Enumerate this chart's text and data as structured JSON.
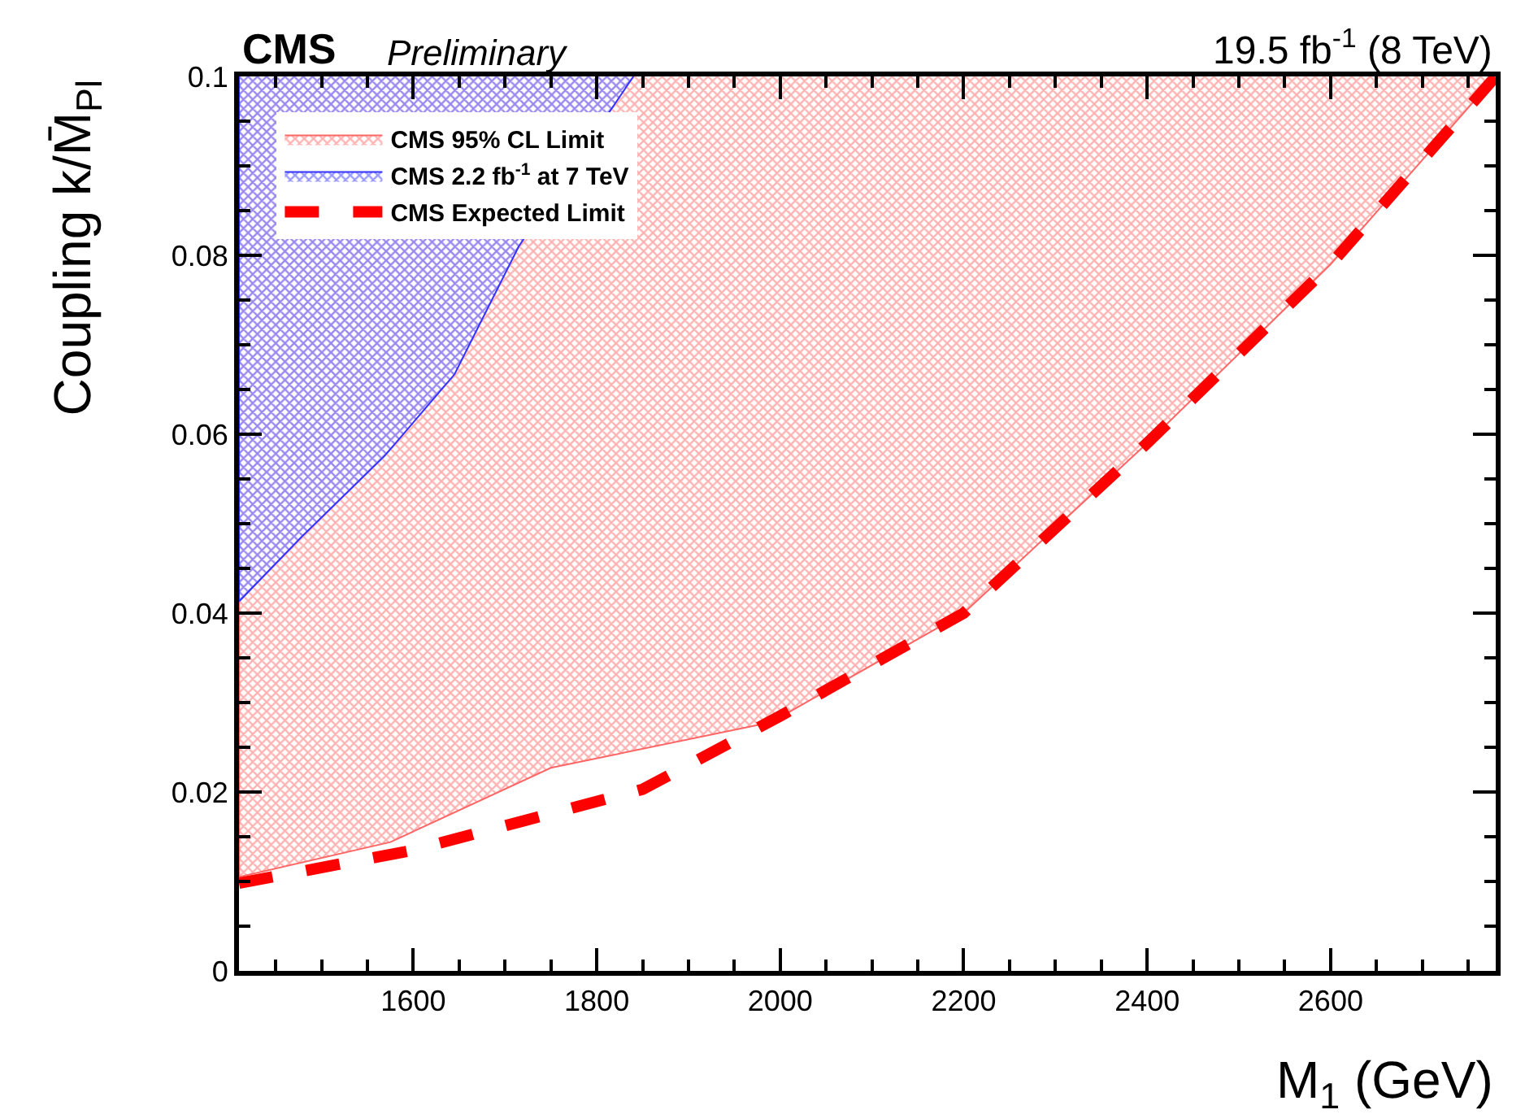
{
  "chart_data": {
    "type": "area",
    "title": "CMS",
    "subtitle": "Preliminary",
    "annotations": [
      "19.5 fb$^{-1}$ (8 TeV)"
    ],
    "xlabel": "M$_{1}$ (GeV)",
    "ylabel": "Coupling k/M̄$_{Pl}$",
    "xlim": [
      1410,
      2780
    ],
    "ylim": [
      0,
      0.1
    ],
    "xticks": [
      1600,
      1800,
      2000,
      2200,
      2400,
      2600
    ],
    "yticks": [
      0,
      0.02,
      0.04,
      0.06,
      0.08,
      0.1
    ],
    "legend": "top left",
    "series": [
      {
        "name": "CMS 95% CL Limit",
        "color": "#ff6666",
        "x": [
          1410,
          1410,
          1575,
          1750,
          1990,
          2200,
          2400,
          2600,
          2780
        ],
        "values": [
          0.1,
          0.0105,
          0.0144,
          0.0227,
          0.0278,
          0.04,
          0.059,
          0.079,
          0.1
        ]
      },
      {
        "name": "CMS 2.2 fb$^{-1}$ at 7 TeV",
        "color": "#3333ff",
        "x": [
          1410,
          1410,
          1478,
          1569,
          1645,
          1715,
          1790,
          1840
        ],
        "values": [
          0.1,
          0.0413,
          0.0485,
          0.0576,
          0.0667,
          0.081,
          null,
          0.1
        ]
      },
      {
        "name": "CMS Expected Limit",
        "type": "line",
        "color": "#ff0000",
        "line_style": "dashed",
        "x": [
          1410,
          1600,
          1850,
          2000,
          2200,
          2400,
          2600,
          2780
        ],
        "values": [
          0.0098,
          0.0135,
          0.0203,
          0.0285,
          0.04,
          0.059,
          0.079,
          0.1
        ]
      }
    ]
  }
}
